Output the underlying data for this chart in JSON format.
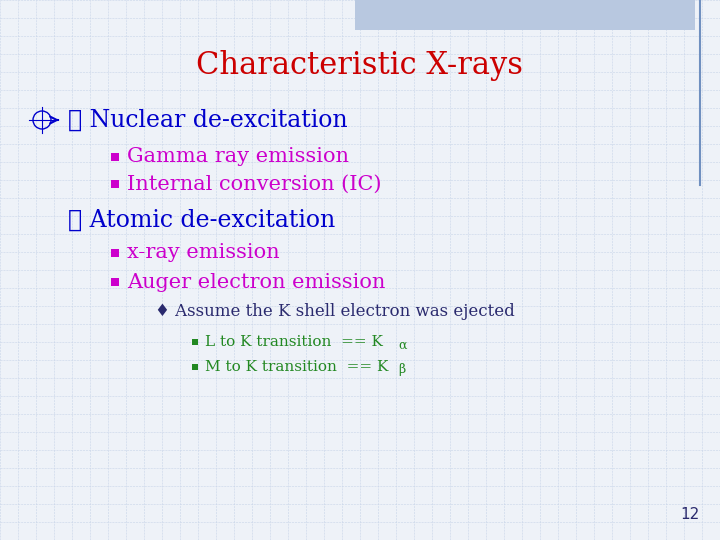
{
  "title": "Characteristic X-rays",
  "title_color": "#cc0000",
  "title_fontsize": 22,
  "background_color": "#eef2f8",
  "grid_color": "#c8d4e8",
  "bullet1_text": "Nuclear de-excitation",
  "bullet1_color": "#0000cc",
  "bullet1_fontsize": 17,
  "sub1_items": [
    "Gamma ray emission",
    "Internal conversion (IC)"
  ],
  "sub1_color": "#cc00cc",
  "sub1_fontsize": 15,
  "bullet2_text": "Atomic de-excitation",
  "bullet2_color": "#0000cc",
  "bullet2_fontsize": 17,
  "sub2_items": [
    "x-ray emission",
    "Auger electron emission"
  ],
  "sub2_color": "#cc00cc",
  "sub2_fontsize": 15,
  "sub2b_text": "Assume the K shell electron was ejected",
  "sub2b_color": "#2a2a6e",
  "sub2b_fontsize": 12,
  "sub3_color": "#228822",
  "sub3_fontsize": 11,
  "page_num": "12",
  "page_color": "#2a2a6e",
  "top_bar_color": "#b8c8e0",
  "right_line_color": "#7090c0"
}
